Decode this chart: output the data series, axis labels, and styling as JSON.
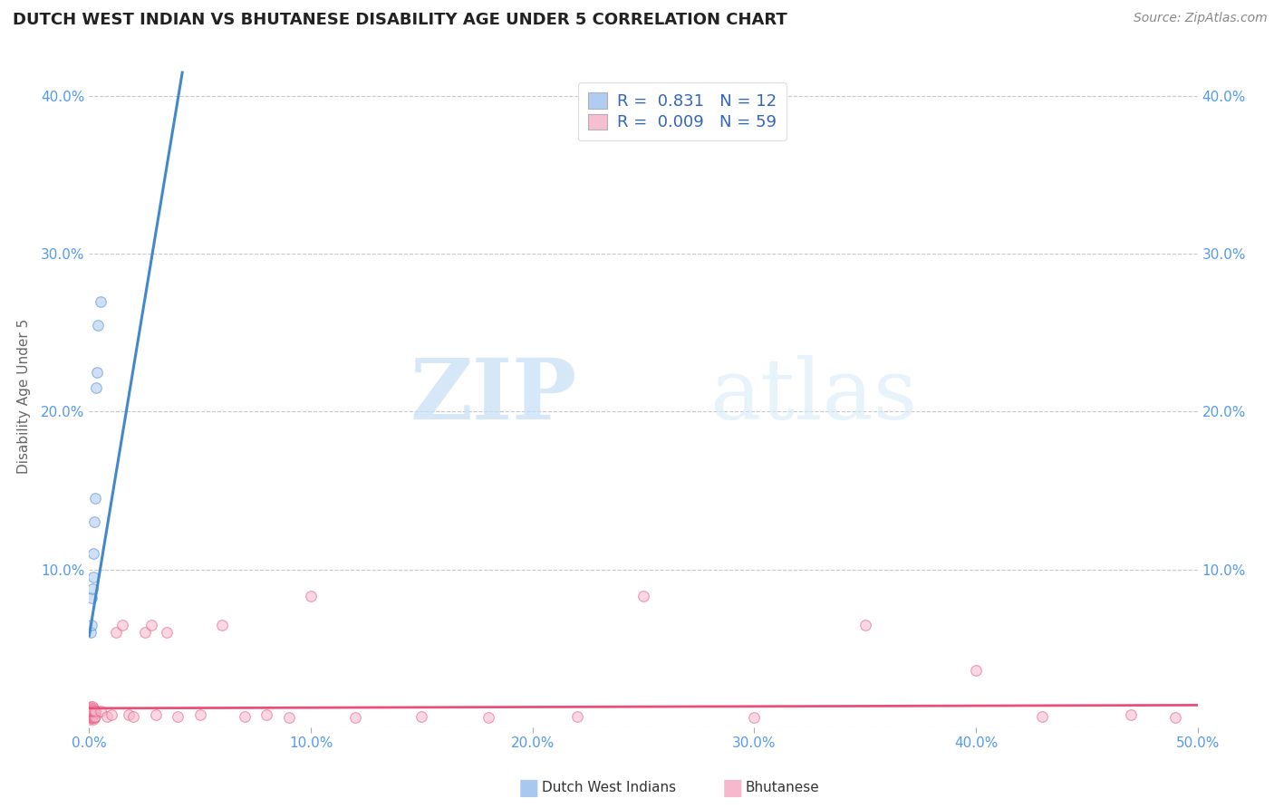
{
  "title": "DUTCH WEST INDIAN VS BHUTANESE DISABILITY AGE UNDER 5 CORRELATION CHART",
  "source": "Source: ZipAtlas.com",
  "ylabel": "Disability Age Under 5",
  "xlim": [
    0.0,
    0.5
  ],
  "ylim": [
    0.0,
    0.42
  ],
  "xticks": [
    0.0,
    0.1,
    0.2,
    0.3,
    0.4,
    0.5
  ],
  "yticks": [
    0.0,
    0.1,
    0.2,
    0.3,
    0.4
  ],
  "xtick_labels": [
    "0.0%",
    "10.0%",
    "20.0%",
    "30.0%",
    "40.0%",
    "50.0%"
  ],
  "ytick_labels": [
    "",
    "10.0%",
    "20.0%",
    "30.0%",
    "40.0%"
  ],
  "right_ytick_labels": [
    "",
    "10.0%",
    "20.0%",
    "30.0%",
    "40.0%"
  ],
  "background_color": "#ffffff",
  "grid_color": "#c8c8c8",
  "dwi_color": "#a8c8f0",
  "bhutanese_color": "#f5b8cc",
  "dwi_line_color": "#4488cc",
  "bhutanese_line_color": "#e8507a",
  "dwi_R": 0.831,
  "dwi_N": 12,
  "bhutanese_R": 0.009,
  "bhutanese_N": 59,
  "dwi_x": [
    0.0008,
    0.001,
    0.0012,
    0.0015,
    0.0018,
    0.002,
    0.0022,
    0.0025,
    0.003,
    0.0035,
    0.004,
    0.005
  ],
  "dwi_y": [
    0.06,
    0.065,
    0.082,
    0.088,
    0.095,
    0.11,
    0.13,
    0.145,
    0.215,
    0.225,
    0.255,
    0.27
  ],
  "dwi_trend_x": [
    0.0,
    0.042
  ],
  "dwi_trend_y": [
    0.058,
    0.415
  ],
  "bhutanese_trend_x": [
    0.0,
    0.5
  ],
  "bhutanese_trend_y": [
    0.012,
    0.014
  ],
  "bhu_x_cluster": [
    0.0003,
    0.0005,
    0.0006,
    0.0007,
    0.0008,
    0.0009,
    0.001,
    0.0011,
    0.0012,
    0.0013,
    0.0015,
    0.0016,
    0.0017,
    0.0018,
    0.0019,
    0.002,
    0.0022,
    0.0024,
    0.0026,
    0.0028,
    0.0004,
    0.0006,
    0.0008,
    0.001,
    0.0012,
    0.0014,
    0.0016,
    0.0018,
    0.002,
    0.0025
  ],
  "bhu_y_cluster": [
    0.005,
    0.007,
    0.006,
    0.009,
    0.008,
    0.006,
    0.01,
    0.007,
    0.008,
    0.006,
    0.009,
    0.007,
    0.005,
    0.008,
    0.006,
    0.01,
    0.007,
    0.006,
    0.009,
    0.007,
    0.012,
    0.011,
    0.013,
    0.012,
    0.01,
    0.013,
    0.011,
    0.012,
    0.011,
    0.01
  ],
  "bhu_x_spread": [
    0.005,
    0.008,
    0.01,
    0.012,
    0.015,
    0.018,
    0.02,
    0.025,
    0.028,
    0.03,
    0.035,
    0.04,
    0.05,
    0.06,
    0.07,
    0.08,
    0.09,
    0.1,
    0.12,
    0.15,
    0.18,
    0.22,
    0.25,
    0.3,
    0.35,
    0.4,
    0.43,
    0.47,
    0.49
  ],
  "bhu_y_spread": [
    0.01,
    0.007,
    0.008,
    0.06,
    0.065,
    0.008,
    0.007,
    0.06,
    0.065,
    0.008,
    0.06,
    0.007,
    0.008,
    0.065,
    0.007,
    0.008,
    0.006,
    0.083,
    0.006,
    0.007,
    0.006,
    0.007,
    0.083,
    0.006,
    0.065,
    0.036,
    0.007,
    0.008,
    0.006
  ],
  "watermark_zip": "ZIP",
  "watermark_atlas": "atlas",
  "title_fontsize": 13,
  "source_fontsize": 10,
  "axis_label_fontsize": 11,
  "tick_fontsize": 11,
  "legend_fontsize": 13,
  "marker_size": 70,
  "marker_alpha": 0.55,
  "marker_edge_width": 0.8
}
